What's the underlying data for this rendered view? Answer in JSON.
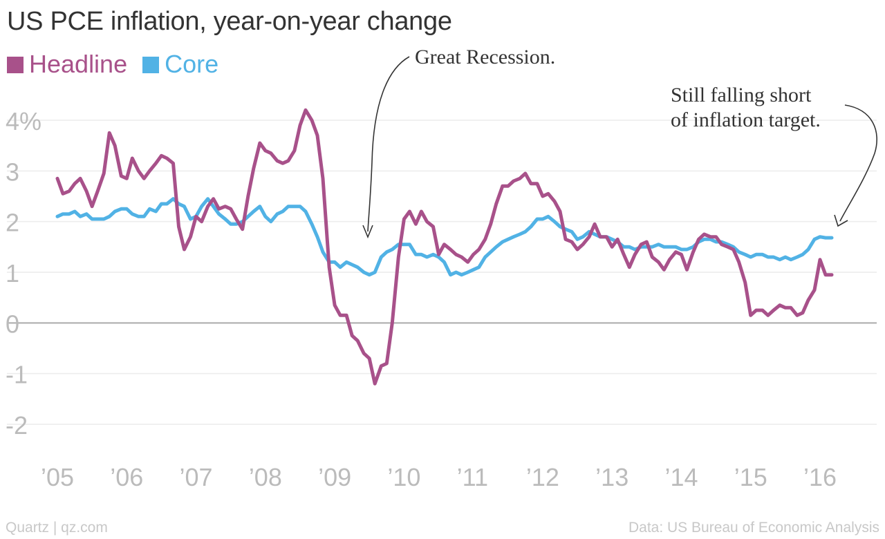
{
  "header": {
    "title": "US PCE inflation, year-on-year change"
  },
  "footer": {
    "credit": "Quartz | qz.com",
    "source": "Data: US Bureau of Economic Analysis"
  },
  "annotations": {
    "recession": "Great Recession.",
    "target_line1": "Still falling short",
    "target_line2": "of inflation target."
  },
  "colors": {
    "headline": "#a8518a",
    "core": "#51b2e5",
    "zero_line": "#aaaaaa",
    "grid": "#ececec",
    "text": "#333333",
    "muted": "#bbbbbb"
  },
  "chart_data": {
    "type": "line",
    "title": "US PCE inflation, year-on-year change",
    "xlabel": "",
    "ylabel": "",
    "xlim": [
      2005.0,
      2016.75
    ],
    "ylim": [
      -2,
      4
    ],
    "y_ticks": [
      -2,
      -1,
      0,
      1,
      2,
      3,
      4
    ],
    "y_tick_labels": [
      "-2",
      "-1",
      "0",
      "1",
      "2",
      "3",
      "4%"
    ],
    "x_ticks": [
      2005,
      2006,
      2007,
      2008,
      2009,
      2010,
      2011,
      2012,
      2013,
      2014,
      2015,
      2016
    ],
    "x_tick_labels": [
      "’05",
      "’06",
      "’07",
      "’08",
      "’09",
      "’10",
      "’11",
      "’12",
      "’13",
      "’14",
      "’15",
      "’16"
    ],
    "grid": true,
    "legend": "top-left",
    "series": [
      {
        "name": "Headline",
        "x": [
          2005.0,
          2005.08,
          2005.17,
          2005.25,
          2005.33,
          2005.42,
          2005.5,
          2005.58,
          2005.67,
          2005.75,
          2005.83,
          2005.92,
          2006.0,
          2006.08,
          2006.17,
          2006.25,
          2006.33,
          2006.42,
          2006.5,
          2006.58,
          2006.67,
          2006.75,
          2006.83,
          2006.92,
          2007.0,
          2007.08,
          2007.17,
          2007.25,
          2007.33,
          2007.42,
          2007.5,
          2007.58,
          2007.67,
          2007.75,
          2007.83,
          2007.92,
          2008.0,
          2008.08,
          2008.17,
          2008.25,
          2008.33,
          2008.42,
          2008.5,
          2008.58,
          2008.67,
          2008.75,
          2008.83,
          2008.92,
          2009.0,
          2009.08,
          2009.17,
          2009.25,
          2009.33,
          2009.42,
          2009.5,
          2009.58,
          2009.67,
          2009.75,
          2009.83,
          2009.92,
          2010.0,
          2010.08,
          2010.17,
          2010.25,
          2010.33,
          2010.42,
          2010.5,
          2010.58,
          2010.67,
          2010.75,
          2010.83,
          2010.92,
          2011.0,
          2011.08,
          2011.17,
          2011.25,
          2011.33,
          2011.42,
          2011.5,
          2011.58,
          2011.67,
          2011.75,
          2011.83,
          2011.92,
          2012.0,
          2012.08,
          2012.17,
          2012.25,
          2012.33,
          2012.42,
          2012.5,
          2012.58,
          2012.67,
          2012.75,
          2012.83,
          2012.92,
          2013.0,
          2013.08,
          2013.17,
          2013.25,
          2013.33,
          2013.42,
          2013.5,
          2013.58,
          2013.67,
          2013.75,
          2013.83,
          2013.92,
          2014.0,
          2014.08,
          2014.17,
          2014.25,
          2014.33,
          2014.42,
          2014.5,
          2014.58,
          2014.67,
          2014.75,
          2014.83,
          2014.92,
          2015.0,
          2015.08,
          2015.17,
          2015.25,
          2015.33,
          2015.42,
          2015.5,
          2015.58,
          2015.67,
          2015.75,
          2015.83,
          2015.92,
          2016.0,
          2016.08,
          2016.17
        ],
        "values": [
          2.85,
          2.55,
          2.6,
          2.75,
          2.85,
          2.6,
          2.3,
          2.6,
          2.95,
          3.75,
          3.5,
          2.9,
          2.85,
          3.25,
          3.0,
          2.85,
          3.0,
          3.15,
          3.3,
          3.25,
          3.15,
          1.9,
          1.45,
          1.7,
          2.1,
          2.0,
          2.3,
          2.45,
          2.25,
          2.3,
          2.25,
          2.05,
          1.85,
          2.5,
          3.05,
          3.55,
          3.4,
          3.35,
          3.2,
          3.15,
          3.2,
          3.4,
          3.9,
          4.2,
          4.0,
          3.7,
          2.85,
          1.1,
          0.35,
          0.15,
          0.15,
          -0.25,
          -0.35,
          -0.6,
          -0.7,
          -1.2,
          -0.85,
          -0.8,
          0.0,
          1.3,
          2.05,
          2.2,
          1.95,
          2.2,
          2.0,
          1.9,
          1.35,
          1.55,
          1.45,
          1.35,
          1.3,
          1.2,
          1.35,
          1.45,
          1.65,
          1.95,
          2.35,
          2.7,
          2.7,
          2.8,
          2.85,
          2.95,
          2.75,
          2.75,
          2.5,
          2.55,
          2.4,
          2.2,
          1.65,
          1.6,
          1.45,
          1.55,
          1.7,
          1.95,
          1.7,
          1.7,
          1.5,
          1.65,
          1.35,
          1.1,
          1.35,
          1.55,
          1.6,
          1.3,
          1.2,
          1.05,
          1.25,
          1.4,
          1.35,
          1.05,
          1.4,
          1.65,
          1.75,
          1.7,
          1.7,
          1.55,
          1.5,
          1.45,
          1.2,
          0.8,
          0.15,
          0.25,
          0.25,
          0.15,
          0.25,
          0.35,
          0.3,
          0.3,
          0.15,
          0.2,
          0.45,
          0.65,
          1.25,
          0.95,
          0.95
        ]
      },
      {
        "name": "Core",
        "x": [
          2005.0,
          2005.08,
          2005.17,
          2005.25,
          2005.33,
          2005.42,
          2005.5,
          2005.58,
          2005.67,
          2005.75,
          2005.83,
          2005.92,
          2006.0,
          2006.08,
          2006.17,
          2006.25,
          2006.33,
          2006.42,
          2006.5,
          2006.58,
          2006.67,
          2006.75,
          2006.83,
          2006.92,
          2007.0,
          2007.08,
          2007.17,
          2007.25,
          2007.33,
          2007.42,
          2007.5,
          2007.58,
          2007.67,
          2007.75,
          2007.83,
          2007.92,
          2008.0,
          2008.08,
          2008.17,
          2008.25,
          2008.33,
          2008.42,
          2008.5,
          2008.58,
          2008.67,
          2008.75,
          2008.83,
          2008.92,
          2009.0,
          2009.08,
          2009.17,
          2009.25,
          2009.33,
          2009.42,
          2009.5,
          2009.58,
          2009.67,
          2009.75,
          2009.83,
          2009.92,
          2010.0,
          2010.08,
          2010.17,
          2010.25,
          2010.33,
          2010.42,
          2010.5,
          2010.58,
          2010.67,
          2010.75,
          2010.83,
          2010.92,
          2011.0,
          2011.08,
          2011.17,
          2011.25,
          2011.33,
          2011.42,
          2011.5,
          2011.58,
          2011.67,
          2011.75,
          2011.83,
          2011.92,
          2012.0,
          2012.08,
          2012.17,
          2012.25,
          2012.33,
          2012.42,
          2012.5,
          2012.58,
          2012.67,
          2012.75,
          2012.83,
          2012.92,
          2013.0,
          2013.08,
          2013.17,
          2013.25,
          2013.33,
          2013.42,
          2013.5,
          2013.58,
          2013.67,
          2013.75,
          2013.83,
          2013.92,
          2014.0,
          2014.08,
          2014.17,
          2014.25,
          2014.33,
          2014.42,
          2014.5,
          2014.58,
          2014.67,
          2014.75,
          2014.83,
          2014.92,
          2015.0,
          2015.08,
          2015.17,
          2015.25,
          2015.33,
          2015.42,
          2015.5,
          2015.58,
          2015.67,
          2015.75,
          2015.83,
          2015.92,
          2016.0,
          2016.08,
          2016.17
        ],
        "values": [
          2.1,
          2.15,
          2.15,
          2.2,
          2.1,
          2.15,
          2.05,
          2.05,
          2.05,
          2.1,
          2.2,
          2.25,
          2.25,
          2.15,
          2.1,
          2.1,
          2.25,
          2.2,
          2.35,
          2.35,
          2.45,
          2.35,
          2.3,
          2.05,
          2.1,
          2.3,
          2.45,
          2.3,
          2.15,
          2.05,
          1.95,
          1.95,
          2.0,
          2.1,
          2.2,
          2.3,
          2.1,
          2.0,
          2.15,
          2.2,
          2.3,
          2.3,
          2.3,
          2.2,
          1.95,
          1.7,
          1.4,
          1.2,
          1.2,
          1.1,
          1.2,
          1.15,
          1.1,
          1.0,
          0.95,
          1.0,
          1.3,
          1.4,
          1.45,
          1.55,
          1.55,
          1.55,
          1.35,
          1.35,
          1.3,
          1.35,
          1.3,
          1.2,
          0.95,
          1.0,
          0.95,
          1.0,
          1.05,
          1.1,
          1.3,
          1.4,
          1.5,
          1.6,
          1.65,
          1.7,
          1.75,
          1.8,
          1.9,
          2.05,
          2.05,
          2.1,
          2.0,
          1.9,
          1.85,
          1.8,
          1.65,
          1.7,
          1.8,
          1.75,
          1.7,
          1.7,
          1.65,
          1.6,
          1.5,
          1.5,
          1.45,
          1.5,
          1.5,
          1.5,
          1.55,
          1.5,
          1.5,
          1.5,
          1.45,
          1.45,
          1.5,
          1.6,
          1.65,
          1.65,
          1.6,
          1.6,
          1.55,
          1.5,
          1.4,
          1.35,
          1.3,
          1.35,
          1.35,
          1.3,
          1.3,
          1.25,
          1.3,
          1.25,
          1.3,
          1.35,
          1.45,
          1.65,
          1.7,
          1.68,
          1.68
        ]
      }
    ]
  }
}
